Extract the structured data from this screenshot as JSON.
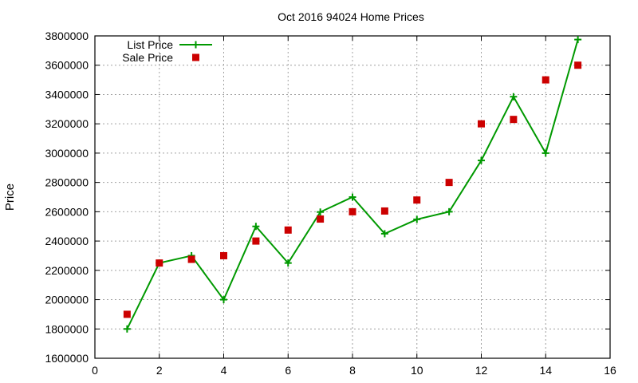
{
  "chart_data": {
    "type": "line",
    "title": "Oct 2016 94024 Home Prices",
    "xlabel": "",
    "ylabel": "Price",
    "xlim": [
      0,
      16
    ],
    "ylim": [
      1600000,
      3800000
    ],
    "x_ticks": [
      0,
      2,
      4,
      6,
      8,
      10,
      12,
      14,
      16
    ],
    "y_ticks": [
      1600000,
      1800000,
      2000000,
      2200000,
      2400000,
      2600000,
      2800000,
      3000000,
      3200000,
      3400000,
      3600000,
      3800000
    ],
    "grid": true,
    "legend_position": "top-left",
    "x": [
      1,
      2,
      3,
      4,
      5,
      6,
      7,
      8,
      9,
      10,
      11,
      12,
      13,
      14,
      15
    ],
    "series": [
      {
        "name": "List Price",
        "style": "linespoints",
        "marker": "plus",
        "color": "#009900",
        "values": [
          1800000,
          2250000,
          2300000,
          2000000,
          2500000,
          2250000,
          2598000,
          2700000,
          2450000,
          2548000,
          2600000,
          2950000,
          3385000,
          3000000,
          3775000
        ]
      },
      {
        "name": "Sale Price",
        "style": "points",
        "marker": "square",
        "color": "#cc0000",
        "values": [
          1900000,
          2250000,
          2275000,
          2300000,
          2400000,
          2475000,
          2550000,
          2600000,
          2605000,
          2680000,
          2800000,
          3200000,
          3230000,
          3500000,
          3600000
        ]
      }
    ]
  }
}
